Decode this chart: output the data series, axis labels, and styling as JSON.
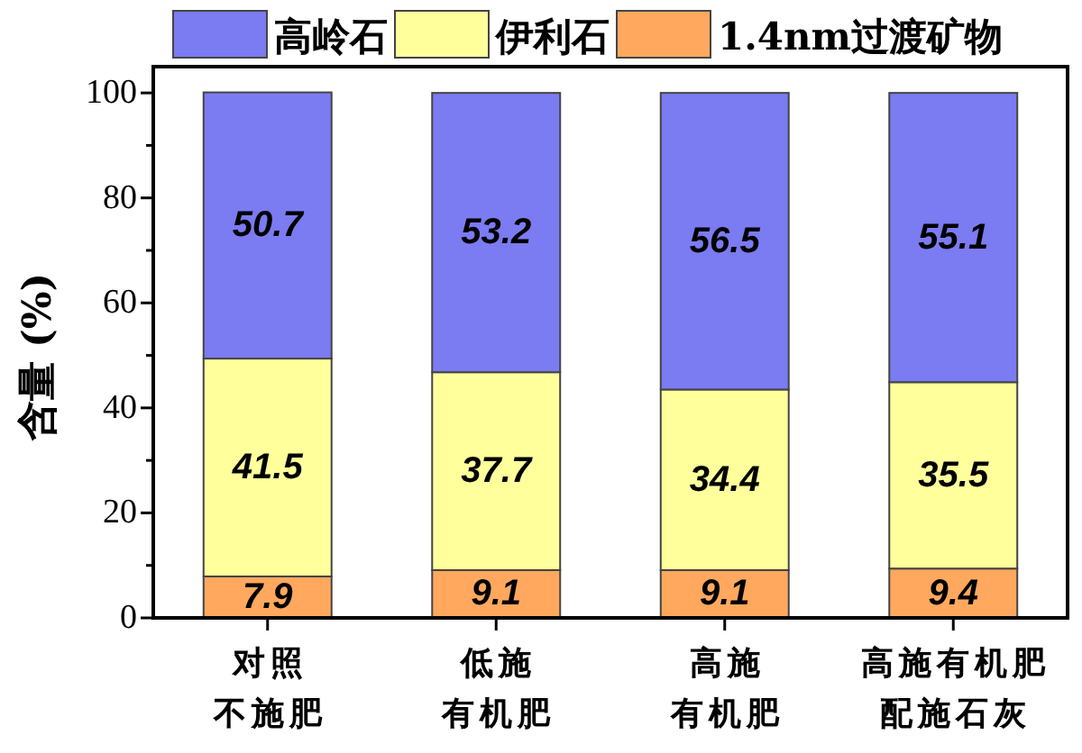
{
  "chart_data": {
    "type": "bar",
    "stacked": true,
    "categories": [
      "对照不施肥",
      "低施有机肥",
      "高施有机肥",
      "高施有机肥配施石灰"
    ],
    "ylabel": "含量 (%)",
    "ylim": [
      0,
      105
    ],
    "yticks": [
      0,
      {
        "value": 10,
        "label": null
      },
      20,
      {
        "value": 30,
        "label": null
      },
      40,
      {
        "value": 50,
        "label": null
      },
      60,
      {
        "value": 70,
        "label": null
      },
      80,
      {
        "value": 90,
        "label": null
      },
      100
    ],
    "series": [
      {
        "name": "1.4nm过渡矿物",
        "color": "#ffa85e",
        "values": [
          7.9,
          9.1,
          9.1,
          9.4
        ]
      },
      {
        "name": "伊利石",
        "color": "#ffff9c",
        "values": [
          41.5,
          37.7,
          34.4,
          35.5
        ]
      },
      {
        "name": "高岭石",
        "color": "#7b7bf2",
        "values": [
          50.7,
          53.2,
          56.5,
          55.1
        ]
      }
    ],
    "data_labels": true,
    "legend": "top"
  }
}
